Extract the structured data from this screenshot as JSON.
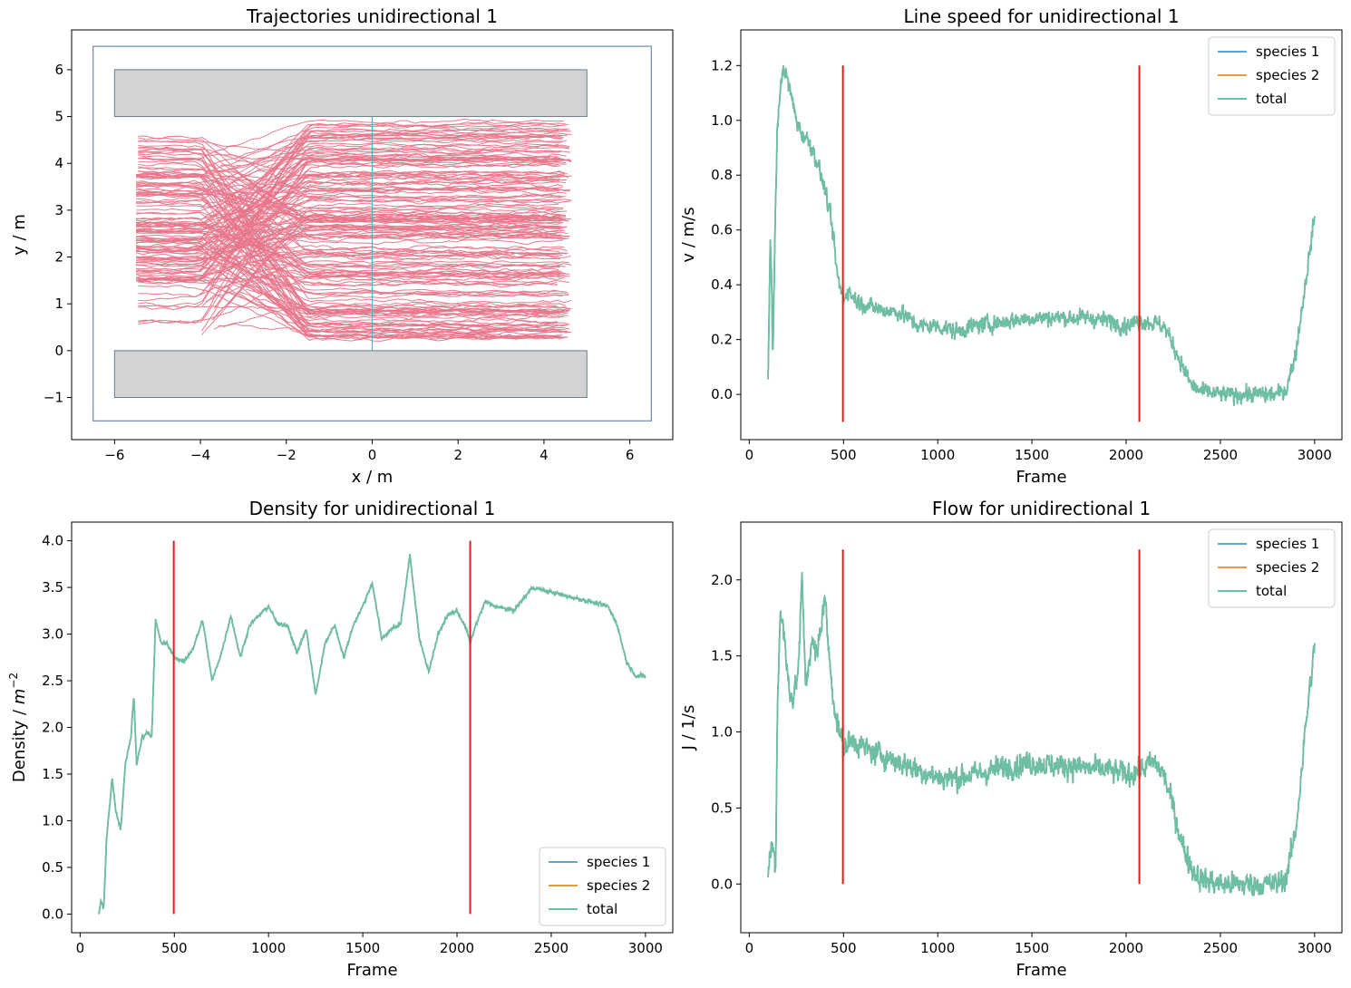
{
  "chart_data": [
    {
      "id": "traj",
      "type": "line",
      "title": "Trajectories unidirectional 1",
      "xlabel": "x / m",
      "ylabel": "y / m",
      "xlim": [
        -7.0,
        7.0
      ],
      "ylim": [
        -1.9,
        6.85
      ],
      "xticks": [
        -6,
        -4,
        -2,
        0,
        2,
        4,
        6
      ],
      "xtick_labels": [
        "−6",
        "−4",
        "−2",
        "0",
        "2",
        "4",
        "6"
      ],
      "yticks": [
        -1,
        0,
        1,
        2,
        3,
        4,
        5,
        6
      ],
      "ytick_labels": [
        "−1",
        "0",
        "1",
        "2",
        "3",
        "4",
        "5",
        "6"
      ],
      "geometry": {
        "outer_boundary": {
          "x": [
            -6.5,
            6.5
          ],
          "y": [
            -1.5,
            6.5
          ]
        },
        "obstacles": [
          {
            "x": [
              -6.0,
              5.0
            ],
            "y": [
              5.0,
              6.0
            ]
          },
          {
            "x": [
              -6.0,
              5.0
            ],
            "y": [
              -1.0,
              0.0
            ]
          }
        ],
        "measurement_line": {
          "x": 0,
          "y": [
            0,
            5
          ]
        }
      },
      "trajectories": {
        "count": 180,
        "x_start_range": [
          -5.5,
          -3.0
        ],
        "x_end_range": [
          4.3,
          4.7
        ],
        "y_start_range": [
          0.5,
          4.65
        ],
        "y_end_range": [
          0.2,
          4.95
        ]
      },
      "colors": {
        "trajectories": "#e8758a",
        "obstacle_fill": "#d3d3d3",
        "obstacle_edge": "#6b7b8c",
        "boundary": "#6b8ab0",
        "measurement_line": "#5fa8d3"
      }
    },
    {
      "id": "speed",
      "type": "line",
      "title": "Line speed for unidirectional 1",
      "xlabel": "Frame",
      "ylabel": "v / m/s",
      "xlim": [
        -45,
        3145
      ],
      "ylim": [
        -0.165,
        1.33
      ],
      "xticks": [
        0,
        500,
        1000,
        1500,
        2000,
        2500,
        3000
      ],
      "yticks": [
        0.0,
        0.2,
        0.4,
        0.6,
        0.8,
        1.0,
        1.2
      ],
      "ytick_labels": [
        "0.0",
        "0.2",
        "0.4",
        "0.6",
        "0.8",
        "1.0",
        "1.2"
      ],
      "legend": [
        "species 1",
        "species 2",
        "total"
      ],
      "legend_position": "top-right",
      "red_lines": {
        "x": [
          497,
          2070
        ],
        "y": [
          -0.1,
          1.2
        ]
      },
      "series_knots": [
        [
          100,
          0.05
        ],
        [
          105,
          0.3
        ],
        [
          112,
          0.55
        ],
        [
          118,
          0.45
        ],
        [
          125,
          0.1
        ],
        [
          135,
          0.55
        ],
        [
          150,
          1.0
        ],
        [
          165,
          1.1
        ],
        [
          180,
          1.2
        ],
        [
          200,
          1.15
        ],
        [
          220,
          1.1
        ],
        [
          250,
          1.0
        ],
        [
          280,
          0.95
        ],
        [
          320,
          0.92
        ],
        [
          360,
          0.85
        ],
        [
          400,
          0.75
        ],
        [
          430,
          0.65
        ],
        [
          450,
          0.55
        ],
        [
          470,
          0.42
        ],
        [
          500,
          0.35
        ],
        [
          520,
          0.38
        ],
        [
          560,
          0.35
        ],
        [
          600,
          0.33
        ],
        [
          700,
          0.31
        ],
        [
          800,
          0.3
        ],
        [
          900,
          0.25
        ],
        [
          1000,
          0.25
        ],
        [
          1100,
          0.23
        ],
        [
          1200,
          0.25
        ],
        [
          1300,
          0.26
        ],
        [
          1400,
          0.27
        ],
        [
          1500,
          0.28
        ],
        [
          1600,
          0.28
        ],
        [
          1700,
          0.28
        ],
        [
          1800,
          0.28
        ],
        [
          1900,
          0.27
        ],
        [
          2000,
          0.25
        ],
        [
          2070,
          0.27
        ],
        [
          2150,
          0.26
        ],
        [
          2200,
          0.25
        ],
        [
          2250,
          0.18
        ],
        [
          2300,
          0.1
        ],
        [
          2350,
          0.03
        ],
        [
          2400,
          0.01
        ],
        [
          2500,
          0.0
        ],
        [
          2600,
          0.0
        ],
        [
          2700,
          0.0
        ],
        [
          2800,
          0.0
        ],
        [
          2850,
          0.02
        ],
        [
          2900,
          0.15
        ],
        [
          2950,
          0.4
        ],
        [
          2980,
          0.55
        ],
        [
          3000,
          0.65
        ]
      ],
      "noise_amplitude": 0.05,
      "series_color": "#6cbfa4",
      "colors": {
        "species 1": "#56a8d8",
        "species 2": "#e39c3e",
        "total": "#6cbfa4",
        "red_lines": "#e41a1c"
      }
    },
    {
      "id": "density",
      "type": "line",
      "title": "Density for unidirectional 1",
      "xlabel": "Frame",
      "ylabel": "Density / ",
      "ylabel_unit": "m",
      "ylabel_exp": "−2",
      "xlim": [
        -45,
        3145
      ],
      "ylim": [
        -0.2,
        4.2
      ],
      "xticks": [
        0,
        500,
        1000,
        1500,
        2000,
        2500,
        3000
      ],
      "yticks": [
        0.0,
        0.5,
        1.0,
        1.5,
        2.0,
        2.5,
        3.0,
        3.5,
        4.0
      ],
      "ytick_labels": [
        "0.0",
        "0.5",
        "1.0",
        "1.5",
        "2.0",
        "2.5",
        "3.0",
        "3.5",
        "4.0"
      ],
      "legend": [
        "species 1",
        "species 2",
        "total"
      ],
      "legend_position": "lower-right",
      "red_lines": {
        "x": [
          497,
          2070
        ],
        "y": [
          0.0,
          4.0
        ]
      },
      "series_knots": [
        [
          100,
          0.0
        ],
        [
          110,
          0.15
        ],
        [
          125,
          0.05
        ],
        [
          140,
          0.8
        ],
        [
          170,
          1.45
        ],
        [
          190,
          1.1
        ],
        [
          215,
          0.9
        ],
        [
          240,
          1.6
        ],
        [
          270,
          1.9
        ],
        [
          285,
          2.35
        ],
        [
          300,
          1.6
        ],
        [
          330,
          1.9
        ],
        [
          360,
          1.95
        ],
        [
          380,
          1.9
        ],
        [
          400,
          3.15
        ],
        [
          430,
          2.9
        ],
        [
          460,
          2.9
        ],
        [
          500,
          2.75
        ],
        [
          550,
          2.7
        ],
        [
          600,
          2.85
        ],
        [
          650,
          3.15
        ],
        [
          700,
          2.5
        ],
        [
          750,
          2.8
        ],
        [
          800,
          3.2
        ],
        [
          850,
          2.75
        ],
        [
          900,
          3.1
        ],
        [
          1000,
          3.3
        ],
        [
          1050,
          3.1
        ],
        [
          1100,
          3.1
        ],
        [
          1150,
          2.8
        ],
        [
          1200,
          3.05
        ],
        [
          1250,
          2.35
        ],
        [
          1300,
          2.9
        ],
        [
          1350,
          3.1
        ],
        [
          1400,
          2.75
        ],
        [
          1450,
          3.1
        ],
        [
          1500,
          3.3
        ],
        [
          1550,
          3.55
        ],
        [
          1600,
          2.95
        ],
        [
          1650,
          3.05
        ],
        [
          1700,
          3.1
        ],
        [
          1750,
          3.85
        ],
        [
          1800,
          2.95
        ],
        [
          1850,
          2.6
        ],
        [
          1900,
          3.0
        ],
        [
          1950,
          3.2
        ],
        [
          2000,
          3.25
        ],
        [
          2050,
          3.05
        ],
        [
          2070,
          2.9
        ],
        [
          2100,
          3.1
        ],
        [
          2150,
          3.35
        ],
        [
          2200,
          3.3
        ],
        [
          2300,
          3.25
        ],
        [
          2400,
          3.5
        ],
        [
          2500,
          3.45
        ],
        [
          2600,
          3.4
        ],
        [
          2700,
          3.35
        ],
        [
          2800,
          3.3
        ],
        [
          2850,
          3.1
        ],
        [
          2900,
          2.7
        ],
        [
          2950,
          2.55
        ],
        [
          3000,
          2.55
        ]
      ],
      "noise_amplitude": 0.03,
      "series_color": "#6cbfa4",
      "colors": {
        "species 1": "#56a8d8",
        "species 2": "#e39c3e",
        "total": "#6cbfa4",
        "red_lines": "#e41a1c"
      }
    },
    {
      "id": "flow",
      "type": "line",
      "title": "Flow for unidirectional 1",
      "xlabel": "Frame",
      "ylabel": "J / 1/s",
      "xlim": [
        -45,
        3145
      ],
      "ylim": [
        -0.32,
        2.38
      ],
      "xticks": [
        0,
        500,
        1000,
        1500,
        2000,
        2500,
        3000
      ],
      "yticks": [
        0.0,
        0.5,
        1.0,
        1.5,
        2.0
      ],
      "ytick_labels": [
        "0.0",
        "0.5",
        "1.0",
        "1.5",
        "2.0"
      ],
      "legend": [
        "species 1",
        "species 2",
        "total"
      ],
      "legend_position": "top-right",
      "red_lines": {
        "x": [
          497,
          2070
        ],
        "y": [
          0.0,
          2.2
        ]
      },
      "series_knots": [
        [
          100,
          0.05
        ],
        [
          110,
          0.2
        ],
        [
          125,
          0.25
        ],
        [
          140,
          0.1
        ],
        [
          150,
          1.2
        ],
        [
          165,
          1.8
        ],
        [
          180,
          1.7
        ],
        [
          200,
          1.4
        ],
        [
          230,
          1.2
        ],
        [
          260,
          1.4
        ],
        [
          280,
          2.0
        ],
        [
          300,
          1.3
        ],
        [
          330,
          1.6
        ],
        [
          360,
          1.5
        ],
        [
          400,
          1.9
        ],
        [
          430,
          1.4
        ],
        [
          460,
          1.1
        ],
        [
          480,
          1.0
        ],
        [
          500,
          0.9
        ],
        [
          550,
          0.95
        ],
        [
          600,
          0.9
        ],
        [
          700,
          0.85
        ],
        [
          800,
          0.8
        ],
        [
          900,
          0.75
        ],
        [
          1000,
          0.7
        ],
        [
          1100,
          0.7
        ],
        [
          1200,
          0.72
        ],
        [
          1300,
          0.75
        ],
        [
          1400,
          0.78
        ],
        [
          1500,
          0.8
        ],
        [
          1600,
          0.78
        ],
        [
          1700,
          0.78
        ],
        [
          1800,
          0.76
        ],
        [
          1900,
          0.75
        ],
        [
          2000,
          0.72
        ],
        [
          2070,
          0.75
        ],
        [
          2150,
          0.8
        ],
        [
          2200,
          0.72
        ],
        [
          2250,
          0.5
        ],
        [
          2300,
          0.25
        ],
        [
          2350,
          0.1
        ],
        [
          2400,
          0.03
        ],
        [
          2500,
          0.0
        ],
        [
          2600,
          0.0
        ],
        [
          2700,
          0.0
        ],
        [
          2800,
          0.0
        ],
        [
          2850,
          0.05
        ],
        [
          2900,
          0.35
        ],
        [
          2950,
          1.0
        ],
        [
          2980,
          1.35
        ],
        [
          3000,
          1.55
        ]
      ],
      "noise_amplitude": 0.13,
      "series_color": "#6cbfa4",
      "colors": {
        "species 1": "#56a8d8",
        "species 2": "#e39c3e",
        "total": "#6cbfa4",
        "red_lines": "#e41a1c"
      }
    }
  ]
}
